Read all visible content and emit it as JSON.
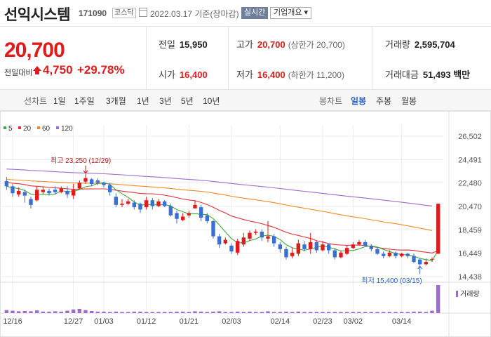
{
  "header": {
    "stock_name": "선익시스템",
    "stock_code": "171090",
    "market": "코스닥",
    "date": "2022.03.17 기준(장마감)",
    "realtime_button": "실시간",
    "company_button": "기업개요 ▾"
  },
  "quote": {
    "price": "20,700",
    "change_label": "전일대비",
    "change_value": "4,750",
    "change_pct": "+29.78%",
    "prev_close_label": "전일",
    "prev_close": "15,950",
    "open_label": "시가",
    "open": "16,400",
    "high_label": "고가",
    "high": "20,700",
    "high_note": "(상한가 20,700)",
    "low_label": "저가",
    "low": "16,400",
    "low_note": "(하한가 11,200)",
    "volume_label": "거래량",
    "volume": "2,595,704",
    "amount_label": "거래대금",
    "amount": "51,493 백만"
  },
  "tabs": {
    "line_group": "선차트",
    "line_items": [
      "1일",
      "1주일",
      "3개월",
      "1년",
      "3년",
      "5년",
      "10년"
    ],
    "candle_group": "봉차트",
    "candle_items": [
      "일봉",
      "주봉",
      "월봉"
    ],
    "active_candle": "일봉"
  },
  "colors": {
    "up": "#e01b1b",
    "down": "#3a6fd6",
    "ma5": "#3caa3c",
    "ma20": "#e0303a",
    "ma60": "#f08a22",
    "ma120": "#9e6cc9",
    "accent": "#2b62c5"
  },
  "chart_data": {
    "type": "candlestick",
    "legend": [
      {
        "name": "5",
        "color": "#3caa3c"
      },
      {
        "name": "20",
        "color": "#e0303a"
      },
      {
        "name": "60",
        "color": "#f08a22"
      },
      {
        "name": "120",
        "color": "#9e6cc9"
      }
    ],
    "y_ticks": [
      "26,502",
      "24,491",
      "22,480",
      "20,470",
      "18,459",
      "16,449",
      "14,438"
    ],
    "ylim": [
      14438,
      26502
    ],
    "x_ticks": [
      {
        "label": "12/16",
        "index": 1
      },
      {
        "label": "12/27",
        "index": 11
      },
      {
        "label": "01/03",
        "index": 16
      },
      {
        "label": "01/12",
        "index": 23
      },
      {
        "label": "01/21",
        "index": 30
      },
      {
        "label": "02/03",
        "index": 37
      },
      {
        "label": "02/14",
        "index": 45
      },
      {
        "label": "02/23",
        "index": 52
      },
      {
        "label": "03/02",
        "index": 57
      },
      {
        "label": "03/14",
        "index": 65
      }
    ],
    "annotations": {
      "high": {
        "text": "최고 23,250 (12/29)",
        "index": 13,
        "value": 23250
      },
      "low": {
        "text": "최저 15,400 (03/15)",
        "index": 68,
        "value": 15400
      }
    },
    "volume_label": "거래량",
    "candles": [
      [
        22650,
        22200,
        23000,
        21900
      ],
      [
        22200,
        21600,
        22400,
        21300
      ],
      [
        21500,
        21800,
        22100,
        21300
      ],
      [
        21700,
        21400,
        21900,
        20800
      ],
      [
        21100,
        20600,
        21300,
        20300
      ],
      [
        21000,
        21900,
        22200,
        20900
      ],
      [
        21700,
        21900,
        22200,
        21500
      ],
      [
        21800,
        21600,
        22000,
        21400
      ],
      [
        21900,
        21700,
        22200,
        21500
      ],
      [
        21700,
        22000,
        22200,
        21600
      ],
      [
        21800,
        21500,
        22200,
        21200
      ],
      [
        21400,
        21900,
        22400,
        21100
      ],
      [
        22000,
        22500,
        22700,
        21900
      ],
      [
        22600,
        22900,
        23250,
        22400
      ],
      [
        22800,
        22400,
        22900,
        22200
      ],
      [
        22700,
        22500,
        22900,
        22300
      ],
      [
        22500,
        22300,
        22600,
        22100
      ],
      [
        22300,
        21700,
        22500,
        21400
      ],
      [
        21300,
        20600,
        21600,
        20400
      ],
      [
        20600,
        20700,
        21100,
        20400
      ],
      [
        20700,
        20900,
        21100,
        20600
      ],
      [
        20800,
        20400,
        21000,
        20200
      ],
      [
        20700,
        20200,
        20800,
        19900
      ],
      [
        20400,
        21000,
        21300,
        20200
      ],
      [
        21000,
        20500,
        21200,
        20200
      ],
      [
        20500,
        20900,
        21100,
        20400
      ],
      [
        20900,
        20500,
        21000,
        20400
      ],
      [
        20500,
        19700,
        20700,
        19600
      ],
      [
        19900,
        19400,
        20100,
        19000
      ],
      [
        19300,
        19600,
        19900,
        19200
      ],
      [
        19700,
        19900,
        20100,
        19500
      ],
      [
        20300,
        20600,
        21000,
        20300
      ],
      [
        20400,
        19500,
        20600,
        19200
      ],
      [
        19700,
        19200,
        19900,
        19000
      ],
      [
        19200,
        17900,
        19300,
        17700
      ],
      [
        17900,
        17200,
        18100,
        16900
      ],
      [
        17300,
        17600,
        17800,
        17200
      ],
      [
        17100,
        16600,
        17300,
        16400
      ],
      [
        16500,
        17500,
        17700,
        16300
      ],
      [
        17200,
        17800,
        18200,
        17000
      ],
      [
        17700,
        18200,
        18400,
        17500
      ],
      [
        18200,
        18300,
        18500,
        18000
      ],
      [
        18300,
        17800,
        18500,
        17500
      ],
      [
        17700,
        17900,
        19200,
        17400
      ],
      [
        17900,
        17300,
        18100,
        17000
      ],
      [
        17200,
        16800,
        17400,
        16500
      ],
      [
        16800,
        16100,
        17000,
        15900
      ],
      [
        16200,
        16500,
        16900,
        16000
      ],
      [
        16400,
        17300,
        17600,
        16200
      ],
      [
        17200,
        16800,
        17500,
        16600
      ],
      [
        16800,
        17400,
        18200,
        16400
      ],
      [
        17400,
        16700,
        17500,
        16500
      ],
      [
        16700,
        17200,
        17500,
        16600
      ],
      [
        17200,
        16700,
        17300,
        16400
      ],
      [
        16700,
        16100,
        16900,
        15900
      ],
      [
        16100,
        16500,
        16700,
        16000
      ],
      [
        16400,
        16900,
        17100,
        16300
      ],
      [
        16900,
        17200,
        17400,
        16800
      ],
      [
        17200,
        17400,
        17600,
        17100
      ],
      [
        17400,
        17100,
        17600,
        17000
      ],
      [
        17100,
        16800,
        17200,
        16600
      ],
      [
        16800,
        16400,
        17000,
        16300
      ],
      [
        16400,
        16200,
        16600,
        16000
      ],
      [
        16200,
        16500,
        16700,
        16100
      ],
      [
        16500,
        16200,
        16600,
        16000
      ],
      [
        16200,
        16400,
        16500,
        16100
      ],
      [
        16400,
        16200,
        16500,
        16000
      ],
      [
        16200,
        15700,
        16400,
        15600
      ],
      [
        15900,
        15500,
        16000,
        15400
      ],
      [
        15500,
        15700,
        16000,
        15400
      ],
      [
        15900,
        15950,
        16100,
        15700
      ],
      [
        16400,
        20700,
        20700,
        16400
      ]
    ],
    "volumes": [
      10,
      8,
      6,
      7,
      6,
      9,
      5,
      5,
      6,
      5,
      8,
      12,
      14,
      10,
      7,
      5,
      5,
      4,
      5,
      4,
      4,
      5,
      5,
      4,
      4,
      4,
      4,
      4,
      5,
      5,
      4,
      6,
      5,
      4,
      5,
      6,
      4,
      4,
      5,
      4,
      5,
      4,
      4,
      6,
      4,
      4,
      5,
      4,
      5,
      4,
      4,
      4,
      4,
      4,
      4,
      4,
      4,
      4,
      4,
      4,
      4,
      4,
      4,
      4,
      4,
      4,
      4,
      5,
      5,
      4,
      8,
      92
    ]
  }
}
